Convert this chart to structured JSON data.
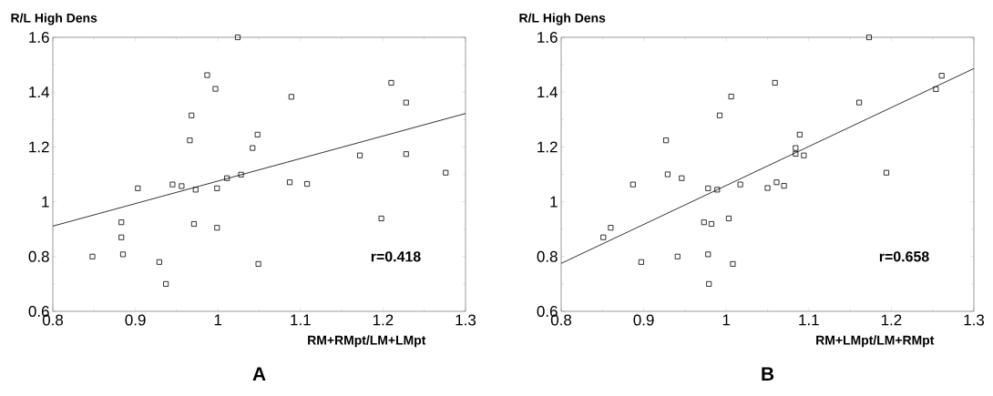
{
  "chart_data": [
    {
      "type": "scatter",
      "xlabel": "RM+RMpt/LM+LMpt",
      "ylabel": "R/L High Dens",
      "annotations": [
        "r=0.418",
        "A"
      ],
      "xlim": [
        0.8,
        1.3
      ],
      "ylim": [
        0.6,
        1.6
      ],
      "xticks": [
        0.8,
        0.9,
        1,
        1.1,
        1.2,
        1.3
      ],
      "yticks": [
        0.6,
        0.8,
        1,
        1.2,
        1.4,
        1.6
      ],
      "series": [
        {
          "marker": "square",
          "color": "#000000",
          "x": [
            0.848,
            0.883,
            0.883,
            0.885,
            0.903,
            0.929,
            0.937,
            0.945,
            0.956,
            0.966,
            0.968,
            0.971,
            0.973,
            0.987,
            0.997,
            0.999,
            0.999,
            1.011,
            1.024,
            1.028,
            1.042,
            1.048,
            1.049,
            1.087,
            1.089,
            1.108,
            1.172,
            1.198,
            1.21,
            1.228,
            1.228,
            1.276
          ],
          "values": [
            0.8,
            0.925,
            0.87,
            0.808,
            1.049,
            0.78,
            0.7,
            1.063,
            1.057,
            1.224,
            1.315,
            0.919,
            1.044,
            1.462,
            1.412,
            1.049,
            0.905,
            1.086,
            1.6,
            1.099,
            1.196,
            1.245,
            0.773,
            1.071,
            1.383,
            1.065,
            1.169,
            0.939,
            1.434,
            1.362,
            1.174,
            1.106
          ]
        },
        {
          "type": "line",
          "marker": "none",
          "color": "#000000",
          "line_style": "solid",
          "x": [
            0.8,
            1.3
          ],
          "values": [
            0.911,
            1.322
          ]
        }
      ]
    },
    {
      "type": "scatter",
      "xlabel": "RM+LMpt/LM+RMpt",
      "ylabel": "R/L High Dens",
      "annotations": [
        "r=0.658",
        "B"
      ],
      "xlim": [
        0.8,
        1.3
      ],
      "ylim": [
        0.6,
        1.6
      ],
      "xticks": [
        0.8,
        0.9,
        1,
        1.1,
        1.2,
        1.3
      ],
      "yticks": [
        0.6,
        0.8,
        1,
        1.2,
        1.4,
        1.6
      ],
      "series": [
        {
          "marker": "square",
          "color": "#000000",
          "x": [
            0.851,
            0.86,
            0.887,
            0.897,
            0.927,
            0.929,
            0.946,
            0.941,
            0.973,
            0.982,
            0.978,
            0.989,
            0.978,
            0.979,
            0.992,
            1.003,
            1.006,
            1.008,
            1.017,
            1.059,
            1.05,
            1.061,
            1.07,
            1.089,
            1.084,
            1.084,
            1.094,
            1.161,
            1.173,
            1.194,
            1.254,
            1.261
          ],
          "values": [
            0.87,
            0.905,
            1.063,
            0.78,
            1.224,
            1.1,
            1.086,
            0.8,
            0.925,
            0.919,
            1.049,
            1.044,
            0.808,
            0.7,
            1.315,
            0.939,
            1.384,
            0.773,
            1.063,
            1.434,
            1.05,
            1.071,
            1.058,
            1.245,
            1.196,
            1.175,
            1.169,
            1.362,
            1.6,
            1.106,
            1.411,
            1.46
          ]
        },
        {
          "type": "line",
          "marker": "none",
          "color": "#000000",
          "line_style": "solid",
          "x": [
            0.8,
            1.3
          ],
          "values": [
            0.775,
            1.486
          ]
        }
      ]
    }
  ]
}
